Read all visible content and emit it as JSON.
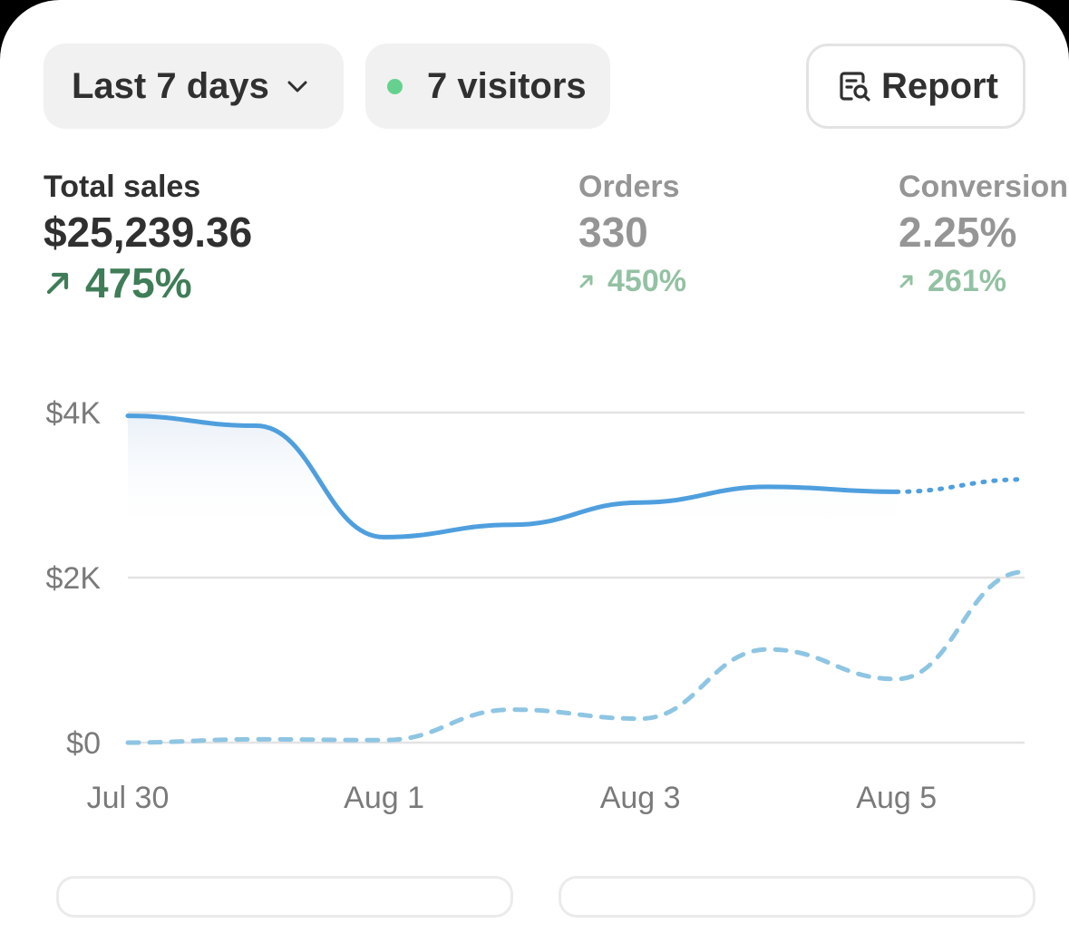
{
  "filters": {
    "range_label": "Last 7 days",
    "visitors_label": "7 visitors",
    "report_label": "Report",
    "live_dot_color": "#66d18f"
  },
  "metrics": {
    "sales": {
      "label": "Total sales",
      "value": "$25,239.36",
      "delta": "475%"
    },
    "orders": {
      "label": "Orders",
      "value": "330",
      "delta": "450%"
    },
    "conversion": {
      "label": "Conversion",
      "value": "2.25%",
      "delta": "261%"
    }
  },
  "icons": {
    "range_dropdown": "chevron-down-icon",
    "report": "report-search-icon",
    "delta": "arrow-up-right-icon"
  },
  "chart_data": {
    "type": "line",
    "x": [
      "Jul 30",
      "Jul 31",
      "Aug 1",
      "Aug 2",
      "Aug 3",
      "Aug 4",
      "Aug 5",
      "Aug 6"
    ],
    "xtick_labels": [
      "Jul 30",
      "Aug 1",
      "Aug 3",
      "Aug 5"
    ],
    "ytick_labels": [
      "$0",
      "$2K",
      "$4K"
    ],
    "yticks": [
      0,
      2000,
      4000
    ],
    "ylim": [
      0,
      4000
    ],
    "grid": true,
    "series": [
      {
        "values": [
          3960,
          3840,
          2490,
          2640,
          2910,
          3100,
          3040,
          3190
        ],
        "color": "#4f9fde",
        "style": "solid",
        "dotted_from_index": 6
      },
      {
        "values": [
          0,
          40,
          30,
          400,
          290,
          1130,
          770,
          2070
        ],
        "color": "#8ec5e3",
        "style": "dashed"
      }
    ]
  }
}
